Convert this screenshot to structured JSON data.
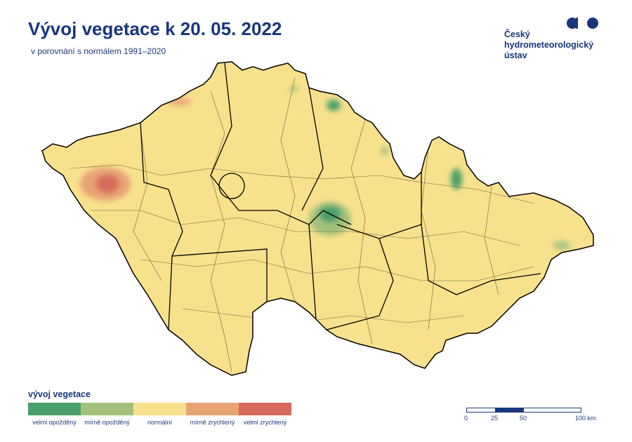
{
  "header": {
    "title": "Vývoj vegetace k 20. 05. 2022",
    "subtitle": "v porovnání s normálem 1991–2020"
  },
  "logo": {
    "lines": [
      "Český",
      "hydrometeorologický",
      "ústav"
    ],
    "color": "#17367d"
  },
  "legend": {
    "title": "vývoj vegetace",
    "items": [
      {
        "label": "velmi opožděný",
        "color": "#4a9e6b"
      },
      {
        "label": "mírně opožděný",
        "color": "#a3c17d"
      },
      {
        "label": "normální",
        "color": "#f8e18c"
      },
      {
        "label": "mírně zrychlený",
        "color": "#e8a373"
      },
      {
        "label": "velmi zrychlený",
        "color": "#d76a5c"
      }
    ]
  },
  "scale_bar": {
    "ticks": [
      "0",
      "25",
      "50",
      "100 km"
    ]
  },
  "map": {
    "background_class": "normální",
    "border_color": "#000000"
  }
}
